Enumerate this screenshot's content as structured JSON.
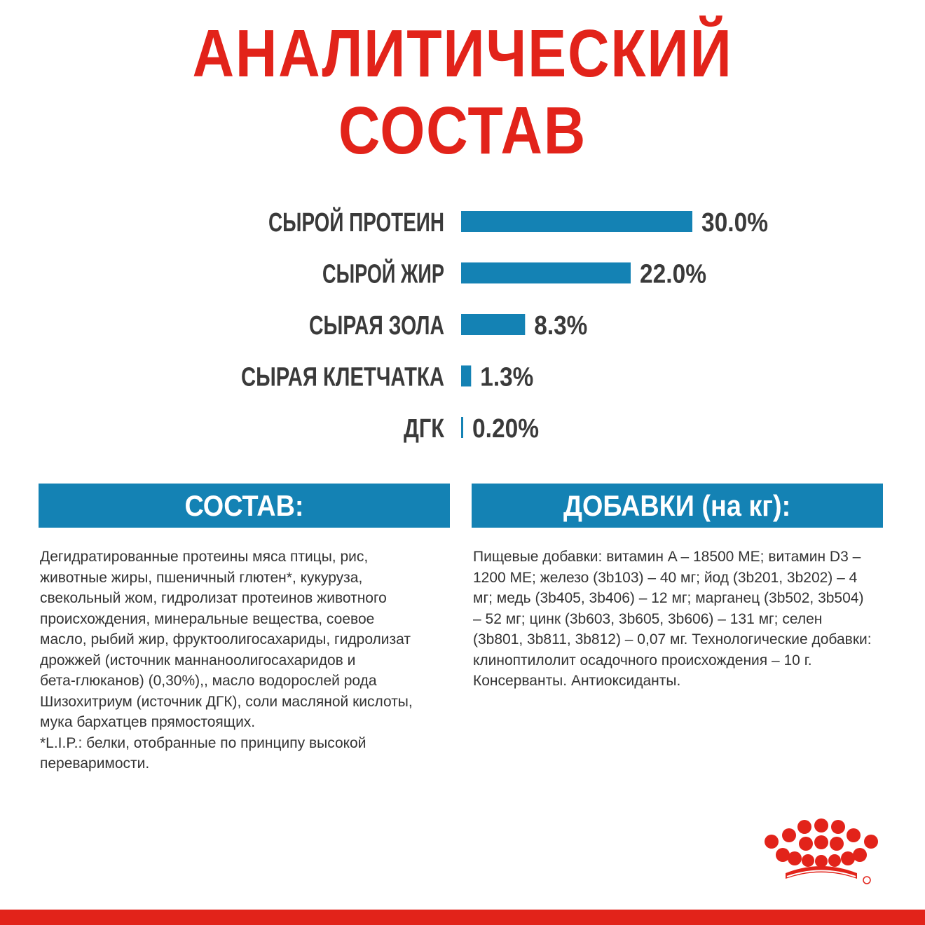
{
  "title": "АНАЛИТИЧЕСКИЙ СОСТАВ",
  "chart_data": {
    "type": "bar",
    "orientation": "horizontal",
    "categories": [
      "СЫРОЙ ПРОТЕИН",
      "СЫРОЙ ЖИР",
      "СЫРАЯ ЗОЛА",
      "СЫРАЯ КЛЕТЧАТКА",
      "ДГК"
    ],
    "values": [
      30.0,
      22.0,
      8.3,
      1.3,
      0.2
    ],
    "value_labels": [
      "30.0%",
      "22.0%",
      "8.3%",
      "1.3%",
      "0.20%"
    ],
    "xlabel": "",
    "ylabel": "",
    "grid": false,
    "legend": "none",
    "bar_color": "#1482b4"
  },
  "ingredients": {
    "heading": "СОСТАВ:",
    "text": "Дегидратированные протеины мяса птицы, рис,\nживотные жиры, пшеничный глютен*, кукуруза,\nсвекольный жом, гидролизат протеинов животного\nпроисхождения, минеральные вещества, соевое\nмасло, рыбий жир, фруктоолигосахариды, гидролизат\nдрожжей (источник маннаноолигосахаридов и\nбета-глюканов) (0,30%),, масло водорослей рода\nШизохитриум (источник ДГК), соли масляной кислоты,\nмука бархатцев прямостоящих.\n*L.I.P.: белки, отобранные по принципу высокой\nпереваримости."
  },
  "additives": {
    "heading": "ДОБАВКИ (на кг):",
    "text": "Пищевые добавки: витамин A – 18500 МЕ; витамин D3 –\n1200 МЕ; железо (3b103) – 40 мг; йод (3b201, 3b202) – 4\nмг; медь (3b405, 3b406) – 12 мг; марганец (3b502, 3b504)\n– 52 мг; цинк (3b603, 3b605, 3b606) – 131 мг; селен\n(3b801, 3b811, 3b812) – 0,07 мг. Технологические добавки:\nклиноптилолит осадочного происхождения – 10 г.\nКонсерванты. Антиоксиданты."
  },
  "colors": {
    "brand_red": "#e2231a",
    "accent_blue": "#1482b4",
    "label_gray": "#3a3a3a"
  },
  "logo": {
    "icon": "royal-canin-crown-icon"
  }
}
